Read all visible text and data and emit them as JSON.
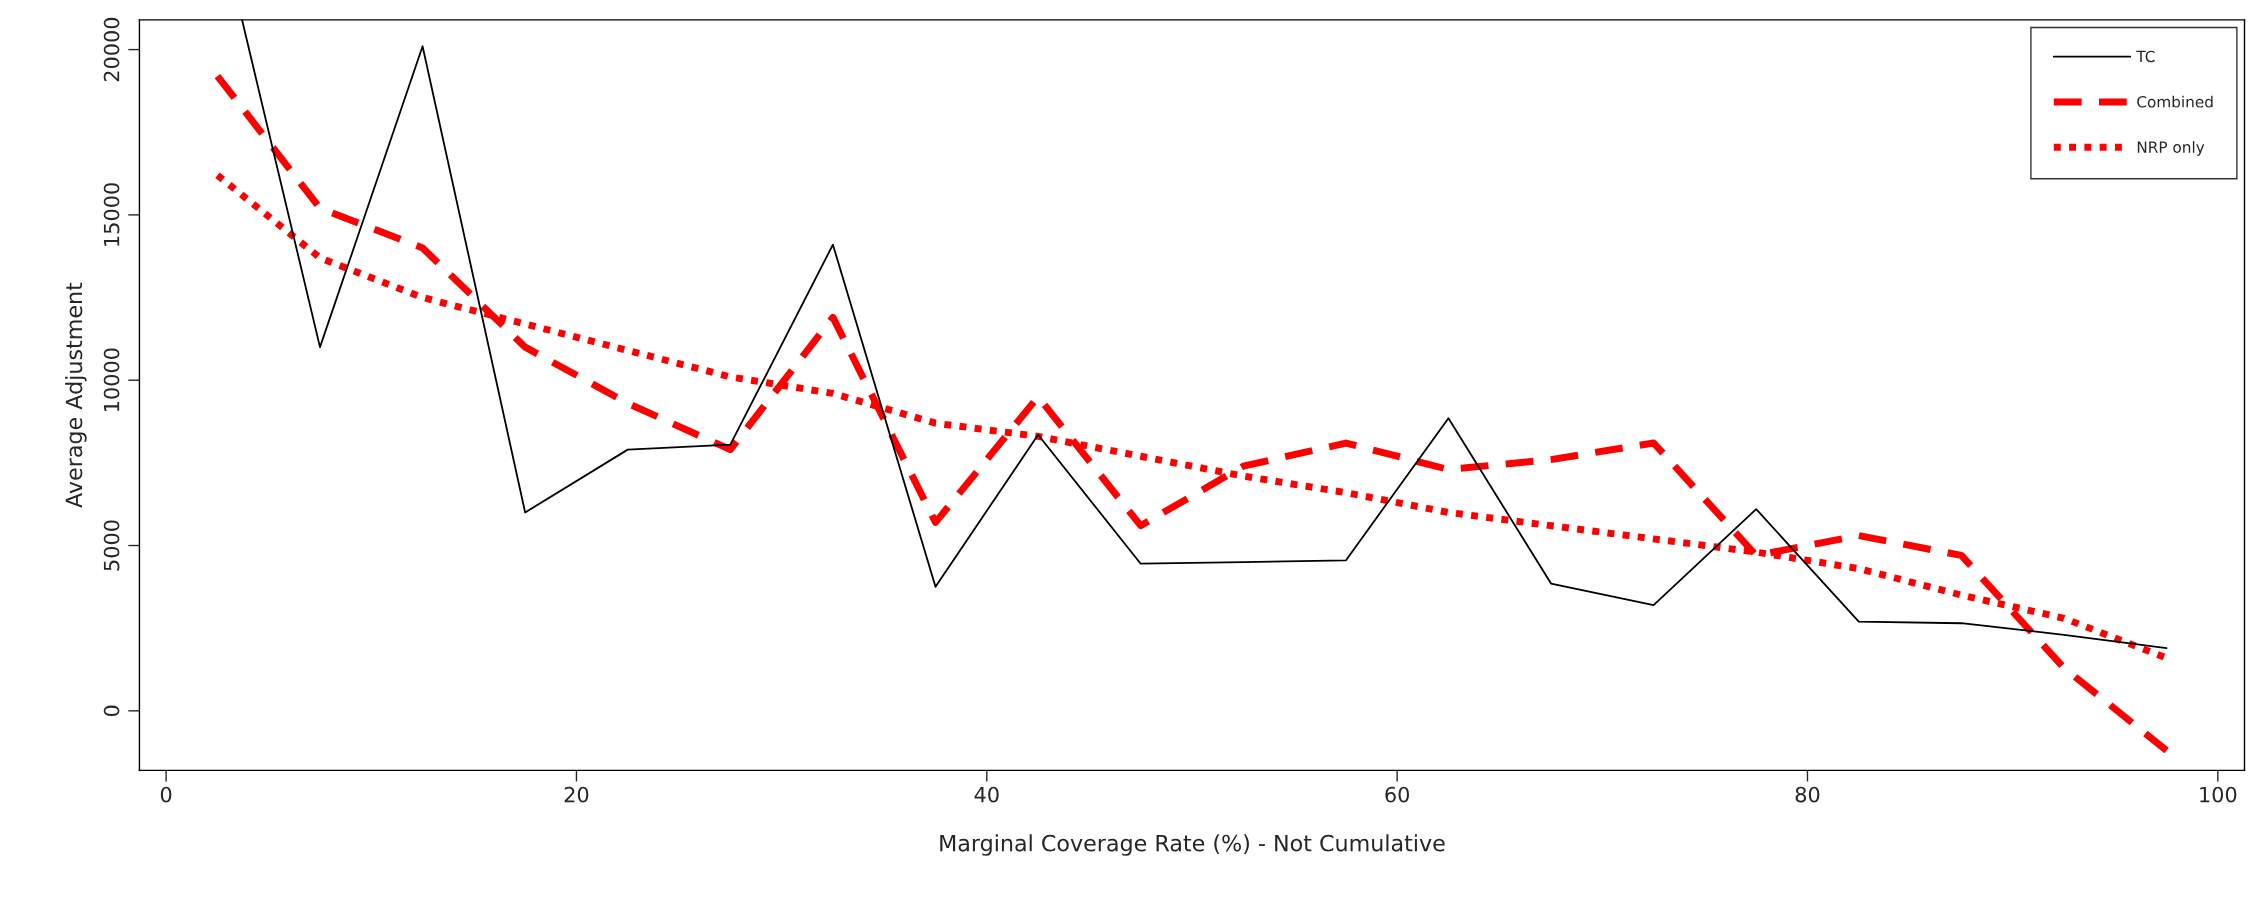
{
  "chart_data": {
    "type": "line",
    "xlabel": "Marginal Coverage Rate (%) - Not Cumulative",
    "ylabel": "Average Adjustment",
    "x": [
      2.5,
      7.5,
      12.5,
      17.5,
      22.5,
      27.5,
      32.5,
      37.5,
      42.5,
      47.5,
      52.5,
      57.5,
      62.5,
      67.5,
      72.5,
      77.5,
      82.5,
      87.5,
      92.5,
      97.5
    ],
    "series": [
      {
        "name": "TC",
        "color": "#000000",
        "line_style": "solid",
        "x": [
          3.7,
          7.5,
          12.5,
          17.5,
          22.5,
          27.5,
          32.5,
          37.5,
          42.5,
          47.5,
          52.5,
          57.5,
          62.5,
          67.5,
          72.5,
          77.5,
          82.5,
          87.5,
          92.5,
          97.5
        ],
        "values": [
          20900,
          11000,
          20100,
          6000,
          7900,
          8050,
          14100,
          3750,
          8350,
          4450,
          4500,
          4550,
          8850,
          3850,
          3200,
          6100,
          2700,
          2650,
          2300,
          1900
        ]
      },
      {
        "name": "Combined",
        "color": "#ff0000",
        "line_style": "dashed",
        "values": [
          19200,
          15200,
          14000,
          11000,
          9300,
          7900,
          11900,
          5700,
          9500,
          5600,
          7400,
          8100,
          7300,
          7600,
          8100,
          4700,
          5300,
          4700,
          1300,
          -1200
        ]
      },
      {
        "name": "NRP only",
        "color": "#ff0000",
        "line_style": "dotted",
        "values": [
          16200,
          13700,
          12500,
          11700,
          10900,
          10100,
          9600,
          8700,
          8300,
          7700,
          7100,
          6600,
          6000,
          5600,
          5200,
          4800,
          4300,
          3500,
          2800,
          1600
        ]
      }
    ],
    "xlim": [
      -1.3,
      101.3
    ],
    "ylim": [
      -1800,
      20900
    ],
    "xticks": [
      0,
      20,
      40,
      60,
      80,
      100
    ],
    "yticks": [
      0,
      5000,
      10000,
      15000,
      20000
    ],
    "legend": "top right",
    "grid": false
  }
}
